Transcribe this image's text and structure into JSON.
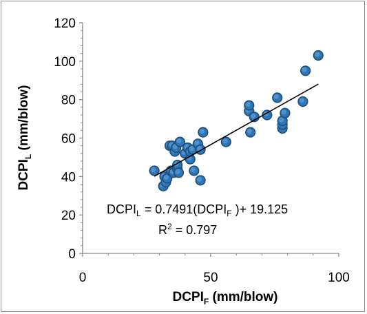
{
  "chart_data": {
    "type": "scatter",
    "xlabel": {
      "main": "DCPI",
      "sub": "F",
      "unit": " (mm/blow)"
    },
    "ylabel": {
      "main": "DCPI",
      "sub": "L",
      "unit": " (mm/blow)"
    },
    "xlim": [
      0,
      100
    ],
    "ylim": [
      0,
      120
    ],
    "xticks": [
      0,
      50,
      100
    ],
    "yticks": [
      0,
      20,
      40,
      60,
      80,
      100,
      120
    ],
    "grid": false,
    "legend": "none",
    "marker_color": "#1f4e79",
    "marker_fill": "#2e75b6",
    "line_color": "#000000",
    "trendline": {
      "slope": 0.7491,
      "intercept": 19.125,
      "x_range": [
        28,
        92
      ]
    },
    "equation": {
      "lhs_main": "DCPI",
      "lhs_sub": "L",
      "mid": " = 0.7491(DCPI",
      "mid_sub": "F",
      "rhs": " )+ 19.125"
    },
    "r2": {
      "prefix": "R",
      "sup": "2",
      "rest": " = 0.797"
    },
    "points": [
      {
        "x": 28,
        "y": 43
      },
      {
        "x": 31.5,
        "y": 35
      },
      {
        "x": 32,
        "y": 40
      },
      {
        "x": 32.5,
        "y": 37
      },
      {
        "x": 33,
        "y": 39
      },
      {
        "x": 34,
        "y": 56
      },
      {
        "x": 35,
        "y": 56
      },
      {
        "x": 34.5,
        "y": 43
      },
      {
        "x": 35.5,
        "y": 42
      },
      {
        "x": 36,
        "y": 53
      },
      {
        "x": 36.5,
        "y": 55
      },
      {
        "x": 37,
        "y": 44
      },
      {
        "x": 37,
        "y": 46
      },
      {
        "x": 37.5,
        "y": 42
      },
      {
        "x": 38,
        "y": 58
      },
      {
        "x": 40,
        "y": 52
      },
      {
        "x": 41,
        "y": 55
      },
      {
        "x": 42,
        "y": 49
      },
      {
        "x": 42,
        "y": 53
      },
      {
        "x": 43,
        "y": 54
      },
      {
        "x": 43.5,
        "y": 43
      },
      {
        "x": 45,
        "y": 57
      },
      {
        "x": 46,
        "y": 38
      },
      {
        "x": 46,
        "y": 54
      },
      {
        "x": 47,
        "y": 63
      },
      {
        "x": 56,
        "y": 58
      },
      {
        "x": 65,
        "y": 74
      },
      {
        "x": 65,
        "y": 77
      },
      {
        "x": 65.5,
        "y": 63
      },
      {
        "x": 67,
        "y": 71
      },
      {
        "x": 72,
        "y": 72
      },
      {
        "x": 76,
        "y": 81
      },
      {
        "x": 78,
        "y": 65
      },
      {
        "x": 78,
        "y": 67
      },
      {
        "x": 78,
        "y": 69
      },
      {
        "x": 79,
        "y": 73
      },
      {
        "x": 86,
        "y": 79
      },
      {
        "x": 87,
        "y": 95
      },
      {
        "x": 92,
        "y": 103
      }
    ]
  }
}
